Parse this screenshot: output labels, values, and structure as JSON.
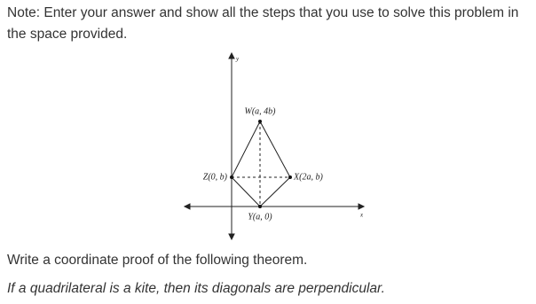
{
  "note": "Note: Enter your answer and show all the steps that you use to solve this problem in the space provided.",
  "diagram": {
    "axis_x": "x",
    "axis_y": "y",
    "points": {
      "W": "W(a, 4b)",
      "Z": "Z(0, b)",
      "X": "X(2a, b)",
      "Y": "Y(a, 0)"
    }
  },
  "prompt": "Write a coordinate proof of the following theorem.",
  "theorem": "If a quadrilateral is a kite, then its diagonals are perpendicular."
}
